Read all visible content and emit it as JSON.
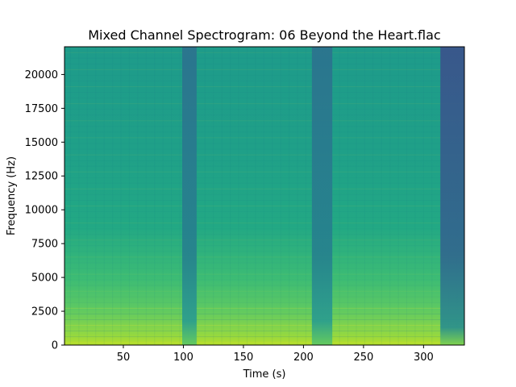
{
  "chart_data": {
    "type": "heatmap",
    "title": "Mixed Channel Spectrogram: 06 Beyond the Heart.flac",
    "xlabel": "Time (s)",
    "ylabel": "Frequency (Hz)",
    "xlim": [
      1,
      334
    ],
    "ylim": [
      0,
      22050
    ],
    "xticks": [
      50,
      100,
      150,
      200,
      250,
      300
    ],
    "xtick_labels": [
      "50",
      "100",
      "150",
      "200",
      "250",
      "300"
    ],
    "yticks": [
      0,
      2500,
      5000,
      7500,
      10000,
      12500,
      15000,
      17500,
      20000
    ],
    "ytick_labels": [
      "0",
      "2500",
      "5000",
      "7500",
      "10000",
      "12500",
      "15000",
      "17500",
      "20000"
    ],
    "colormap": "viridis",
    "quiet_sections_s": [
      [
        99,
        111
      ],
      [
        207,
        224
      ],
      [
        314,
        334
      ]
    ],
    "grid": false,
    "colors": {
      "low": "#3b528b",
      "mid": "#21918c",
      "high": "#5ec962",
      "peak": "#b5de2b"
    }
  }
}
